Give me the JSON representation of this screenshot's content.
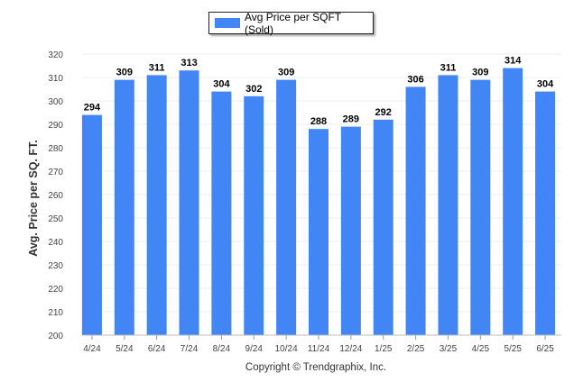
{
  "chart_data": {
    "type": "bar",
    "categories": [
      "4/24",
      "5/24",
      "6/24",
      "7/24",
      "8/24",
      "9/24",
      "10/24",
      "11/24",
      "12/24",
      "1/25",
      "2/25",
      "3/25",
      "4/25",
      "5/25",
      "6/25"
    ],
    "series": [
      {
        "name": "Avg Price per SQFT (Sold)",
        "values": [
          294,
          309,
          311,
          313,
          304,
          302,
          309,
          288,
          289,
          292,
          306,
          311,
          309,
          314,
          304
        ]
      }
    ],
    "ylabel": "Avg. Price per SQ. FT.",
    "xlabel": "",
    "ylim": [
      200,
      320
    ],
    "yticks": [
      200,
      210,
      220,
      230,
      240,
      250,
      260,
      270,
      280,
      290,
      300,
      310,
      320
    ],
    "grid": true,
    "legend_position": "top-center",
    "bar_color": "#4285f4"
  },
  "footer": {
    "copyright": "Copyright © Trendgraphix, Inc."
  }
}
